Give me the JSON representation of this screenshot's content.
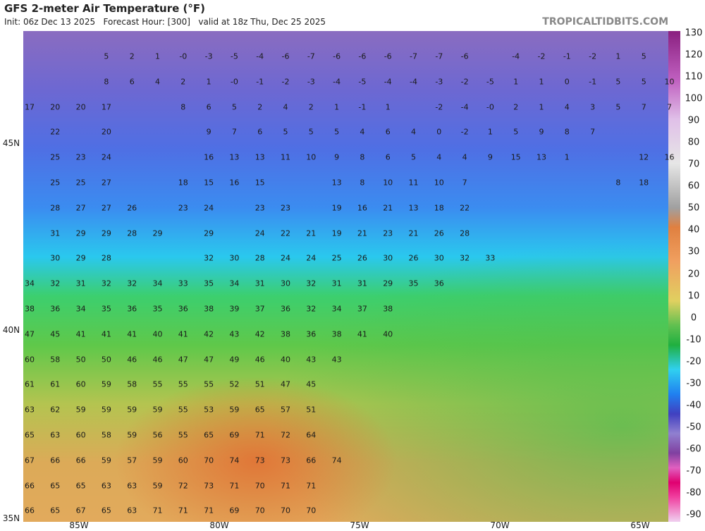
{
  "header": {
    "title": "GFS 2-meter Air Temperature (°F)",
    "subtitle": "Init: 06z Dec 13 2025   Forecast Hour: [300]   valid at 18z Thu, Dec 25 2025",
    "brand": "TROPICALTIDBITS.COM"
  },
  "latitude_labels": [
    "45N",
    "40N",
    "35N"
  ],
  "longitude_labels": [
    "85W",
    "80W",
    "75W",
    "70W",
    "65W"
  ],
  "colorbar": {
    "ticks": [
      130,
      120,
      110,
      100,
      90,
      80,
      70,
      60,
      50,
      40,
      30,
      20,
      10,
      0,
      -10,
      -20,
      -30,
      -40,
      -50,
      -60,
      -70,
      -80,
      -90
    ]
  },
  "station_rows": [
    [
      null,
      null,
      null,
      5,
      2,
      1,
      "-0",
      -3,
      -5,
      -4,
      -6,
      -7,
      -6,
      -6,
      -6,
      -7,
      -7,
      -6,
      null,
      -4,
      -2,
      -1,
      -2,
      1,
      5
    ],
    [
      null,
      null,
      null,
      8,
      6,
      4,
      2,
      1,
      "-0",
      -1,
      -2,
      -3,
      -4,
      -5,
      -4,
      -4,
      -3,
      -2,
      -5,
      1,
      1,
      0,
      -1,
      5,
      5,
      10
    ],
    [
      17,
      20,
      20,
      17,
      null,
      null,
      8,
      6,
      5,
      2,
      4,
      2,
      1,
      -1,
      1,
      null,
      -2,
      -4,
      "-0",
      2,
      1,
      4,
      3,
      5,
      7,
      7
    ],
    [
      null,
      22,
      null,
      20,
      null,
      null,
      null,
      9,
      7,
      6,
      5,
      5,
      5,
      4,
      6,
      4,
      0,
      -2,
      1,
      5,
      9,
      8,
      7
    ],
    [
      null,
      25,
      23,
      24,
      null,
      null,
      null,
      16,
      13,
      13,
      11,
      10,
      9,
      8,
      6,
      5,
      4,
      4,
      9,
      15,
      13,
      1,
      null,
      null,
      12,
      16
    ],
    [
      null,
      25,
      25,
      27,
      null,
      null,
      18,
      15,
      16,
      15,
      null,
      null,
      13,
      8,
      10,
      11,
      10,
      7,
      null,
      null,
      null,
      null,
      null,
      8,
      18
    ],
    [
      null,
      28,
      27,
      27,
      26,
      null,
      23,
      24,
      null,
      23,
      23,
      null,
      19,
      16,
      21,
      13,
      18,
      22
    ],
    [
      null,
      31,
      29,
      29,
      28,
      29,
      null,
      29,
      null,
      24,
      22,
      21,
      19,
      21,
      23,
      21,
      26,
      28
    ],
    [
      null,
      30,
      29,
      28,
      null,
      null,
      null,
      32,
      30,
      28,
      24,
      24,
      25,
      26,
      30,
      26,
      30,
      32,
      33
    ],
    [
      34,
      32,
      31,
      32,
      32,
      34,
      33,
      35,
      34,
      31,
      30,
      32,
      31,
      31,
      29,
      35,
      36
    ],
    [
      38,
      36,
      34,
      35,
      36,
      35,
      36,
      38,
      39,
      37,
      36,
      32,
      34,
      37,
      38
    ],
    [
      47,
      45,
      41,
      41,
      41,
      40,
      41,
      42,
      43,
      42,
      38,
      36,
      38,
      41,
      40
    ],
    [
      60,
      58,
      50,
      50,
      46,
      46,
      47,
      47,
      49,
      46,
      40,
      43,
      43
    ],
    [
      61,
      61,
      60,
      59,
      58,
      55,
      55,
      55,
      52,
      51,
      47,
      45
    ],
    [
      63,
      62,
      59,
      59,
      59,
      59,
      55,
      53,
      59,
      65,
      57,
      51
    ],
    [
      65,
      63,
      60,
      58,
      59,
      56,
      55,
      65,
      69,
      71,
      72,
      64
    ],
    [
      67,
      66,
      66,
      59,
      57,
      59,
      60,
      70,
      74,
      73,
      73,
      66,
      74
    ],
    [
      66,
      65,
      65,
      63,
      63,
      59,
      72,
      73,
      71,
      70,
      71,
      71
    ],
    [
      66,
      65,
      67,
      65,
      63,
      71,
      71,
      71,
      69,
      70,
      70,
      70
    ]
  ]
}
